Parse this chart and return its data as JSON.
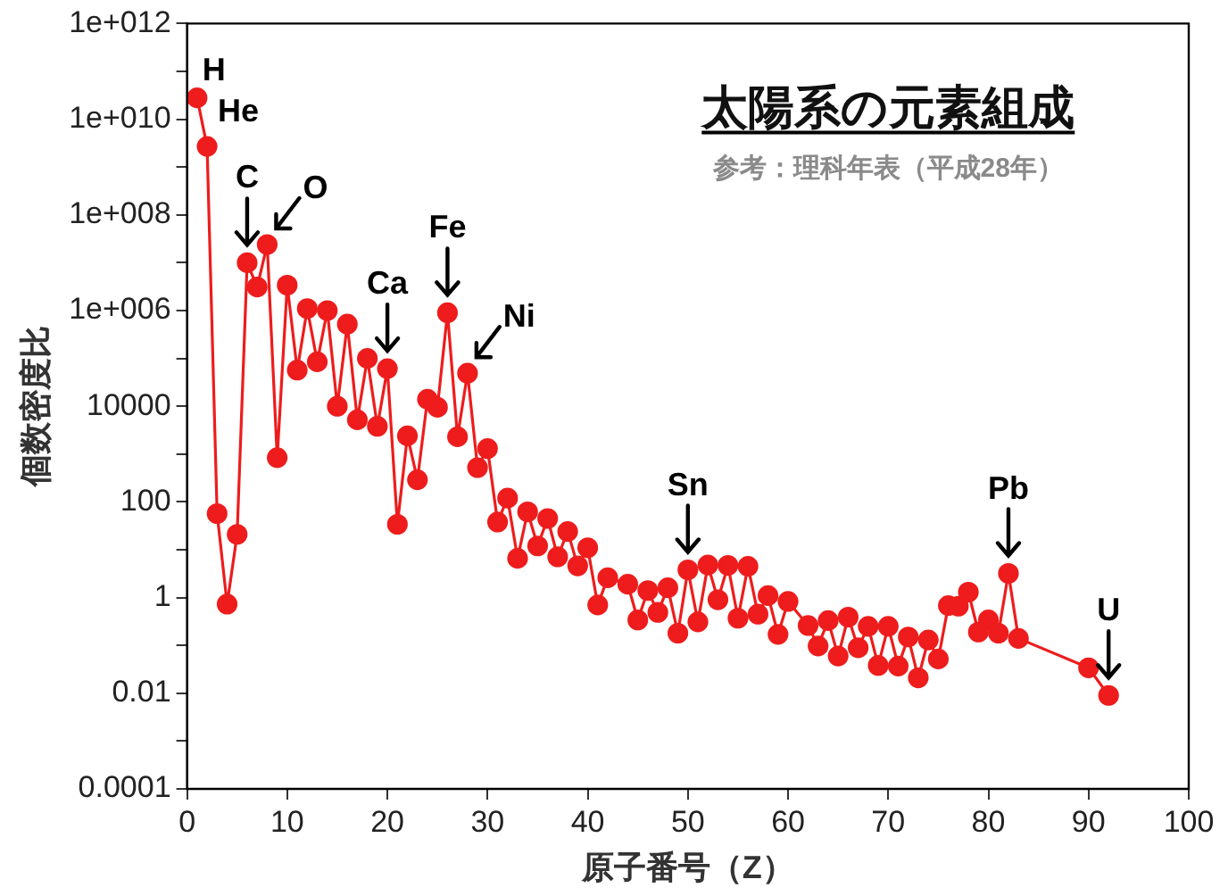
{
  "chart_data": {
    "type": "line",
    "title": "太陽系の元素組成",
    "subtitle": "参考：理科年表（平成28年）",
    "xlabel": "原子番号（Z）",
    "ylabel": "個数密度比",
    "x": [
      1,
      2,
      3,
      4,
      5,
      6,
      7,
      8,
      9,
      10,
      11,
      12,
      13,
      14,
      15,
      16,
      17,
      18,
      19,
      20,
      21,
      22,
      23,
      24,
      25,
      26,
      27,
      28,
      29,
      30,
      31,
      32,
      33,
      34,
      35,
      36,
      37,
      38,
      39,
      40,
      41,
      42,
      44,
      45,
      46,
      47,
      48,
      49,
      50,
      51,
      52,
      53,
      54,
      55,
      56,
      57,
      58,
      59,
      60,
      62,
      63,
      64,
      65,
      66,
      67,
      68,
      69,
      70,
      71,
      72,
      73,
      74,
      75,
      76,
      77,
      78,
      79,
      80,
      81,
      82,
      83,
      90,
      92
    ],
    "series": [
      {
        "color": "#ee1c1c",
        "values": [
          28000000000,
          2700000000,
          57,
          0.73,
          21,
          10000000,
          3100000,
          24000000,
          840,
          3400000,
          57000,
          1100000,
          85000,
          1000000,
          10000,
          520000,
          5200,
          100000,
          3800,
          61000,
          34,
          2400,
          290,
          14000,
          9500,
          900000,
          2300,
          49000,
          520,
          1300,
          38,
          120,
          6.6,
          62,
          12,
          45,
          7.1,
          24,
          4.6,
          11,
          0.7,
          2.6,
          1.9,
          0.34,
          1.4,
          0.49,
          1.6,
          0.18,
          3.8,
          0.31,
          4.8,
          0.9,
          4.7,
          0.37,
          4.5,
          0.45,
          1.1,
          0.17,
          0.83,
          0.26,
          0.097,
          0.33,
          0.06,
          0.39,
          0.089,
          0.25,
          0.038,
          0.25,
          0.037,
          0.15,
          0.021,
          0.13,
          0.052,
          0.68,
          0.66,
          1.3,
          0.19,
          0.34,
          0.18,
          3.2,
          0.14,
          0.034,
          0.009
        ]
      }
    ],
    "xlim": [
      0,
      100
    ],
    "xticks": [
      0,
      10,
      20,
      30,
      40,
      50,
      60,
      70,
      80,
      90,
      100
    ],
    "ylim": [
      0.0001,
      1000000000000
    ],
    "log": "y",
    "yticks": [
      0.0001,
      {
        "value": 0.001,
        "label": null
      },
      0.01,
      {
        "value": 0.1,
        "label": null
      },
      1,
      {
        "value": 10,
        "label": null
      },
      100,
      {
        "value": 1000,
        "label": null
      },
      10000,
      {
        "value": 100000,
        "label": null
      },
      {
        "value": 1000000,
        "label": "1e+006"
      },
      {
        "value": 10000000,
        "label": null
      },
      {
        "value": 100000000,
        "label": "1e+008"
      },
      {
        "value": 1000000000,
        "label": null
      },
      {
        "value": 10000000000,
        "label": "1e+010"
      },
      {
        "value": 100000000000,
        "label": null
      },
      {
        "value": 1000000000000,
        "label": "1e+012"
      }
    ],
    "grid": false,
    "legend": false,
    "marker": "circle",
    "line_style": "solid",
    "annotations": [
      {
        "text": "H",
        "x": 1,
        "y": 28000000000
      },
      {
        "text": "He",
        "x": 2,
        "y": 2700000000
      },
      {
        "text": "C",
        "x": 6,
        "y": 10000000
      },
      {
        "text": "O",
        "x": 8,
        "y": 24000000
      },
      {
        "text": "Ca",
        "x": 20,
        "y": 61000
      },
      {
        "text": "Fe",
        "x": 26,
        "y": 900000
      },
      {
        "text": "Ni",
        "x": 28,
        "y": 49000
      },
      {
        "text": "Sn",
        "x": 50,
        "y": 3.8
      },
      {
        "text": "Pb",
        "x": 82,
        "y": 3.2
      },
      {
        "text": "U",
        "x": 92,
        "y": 0.009
      }
    ]
  }
}
